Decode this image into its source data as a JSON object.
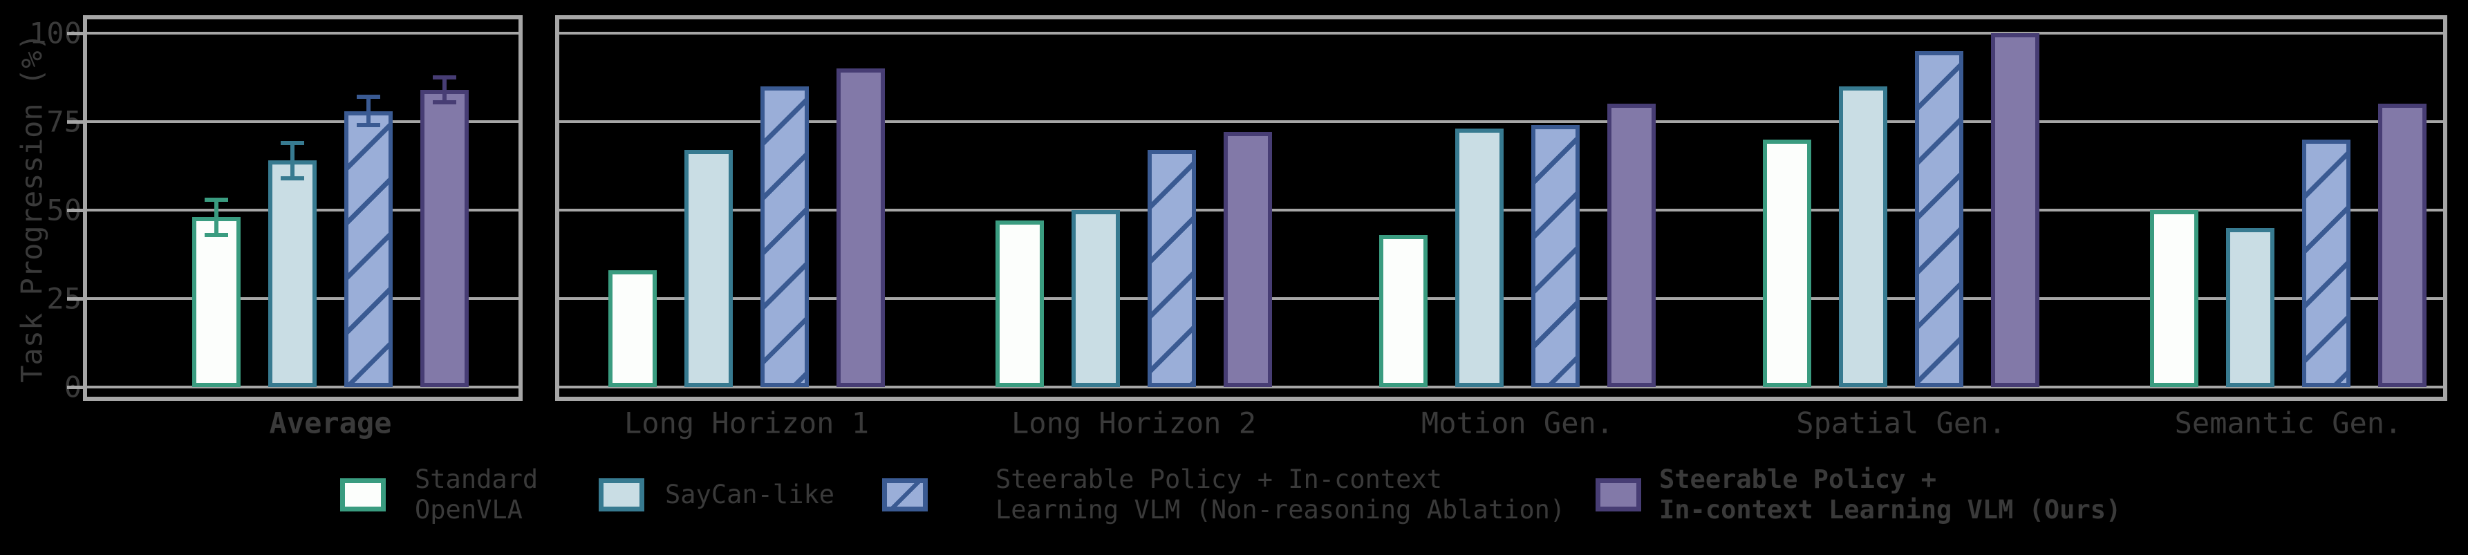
{
  "figure": {
    "background_color": "#000000",
    "text_color": "#3a3a3a",
    "grid_color": "#a6a6a6"
  },
  "chart_data": {
    "type": "bar",
    "title": "",
    "ylabel": "Task Progression (%)",
    "xlabel": "",
    "ylim": [
      0,
      100
    ],
    "yticks": [
      0,
      25,
      50,
      75,
      100
    ],
    "grid": "horizontal",
    "legend_position": "bottom",
    "panels": [
      {
        "name": "average",
        "categories": [
          {
            "label": "Average",
            "bold": true
          }
        ]
      },
      {
        "name": "tasks",
        "categories": [
          {
            "label": "Long Horizon 1",
            "bold": false
          },
          {
            "label": "Long Horizon 2",
            "bold": false
          },
          {
            "label": "Motion Gen.",
            "bold": false
          },
          {
            "label": "Spatial Gen.",
            "bold": false
          },
          {
            "label": "Semantic Gen.",
            "bold": false
          }
        ]
      }
    ],
    "series": [
      {
        "name": "Standard OpenVLA",
        "legend_lines": [
          "Standard",
          "OpenVLA"
        ],
        "legend_bold": false,
        "fill": "#fcfefc",
        "edge": "#3a9c80",
        "hatch": false,
        "average": 48,
        "average_error": 5,
        "tasks": [
          33,
          47,
          43,
          70,
          50
        ]
      },
      {
        "name": "SayCan-like",
        "legend_lines": [
          "SayCan-like"
        ],
        "legend_bold": false,
        "fill": "#c9dde4",
        "edge": "#377a90",
        "hatch": false,
        "average": 64,
        "average_error": 5,
        "tasks": [
          67,
          50,
          73,
          85,
          45
        ]
      },
      {
        "name": "Steerable Policy + In-context Learning VLM (Non-reasoning Ablation)",
        "legend_lines": [
          "Steerable Policy + In-context",
          "Learning VLM (Non-reasoning Ablation)"
        ],
        "legend_bold": false,
        "fill": "#9aaed8",
        "edge": "#3a5a92",
        "hatch": true,
        "average": 78,
        "average_error": 4,
        "tasks": [
          85,
          67,
          74,
          95,
          70
        ]
      },
      {
        "name": "Steerable Policy + In-context Learning VLM (Ours)",
        "legend_lines": [
          "Steerable Policy +",
          "In-context Learning VLM (Ours)"
        ],
        "legend_bold": true,
        "fill": "#8279a8",
        "edge": "#473d74",
        "hatch": false,
        "average": 84,
        "average_error": 3.5,
        "tasks": [
          90,
          72,
          80,
          100,
          80
        ]
      }
    ]
  }
}
